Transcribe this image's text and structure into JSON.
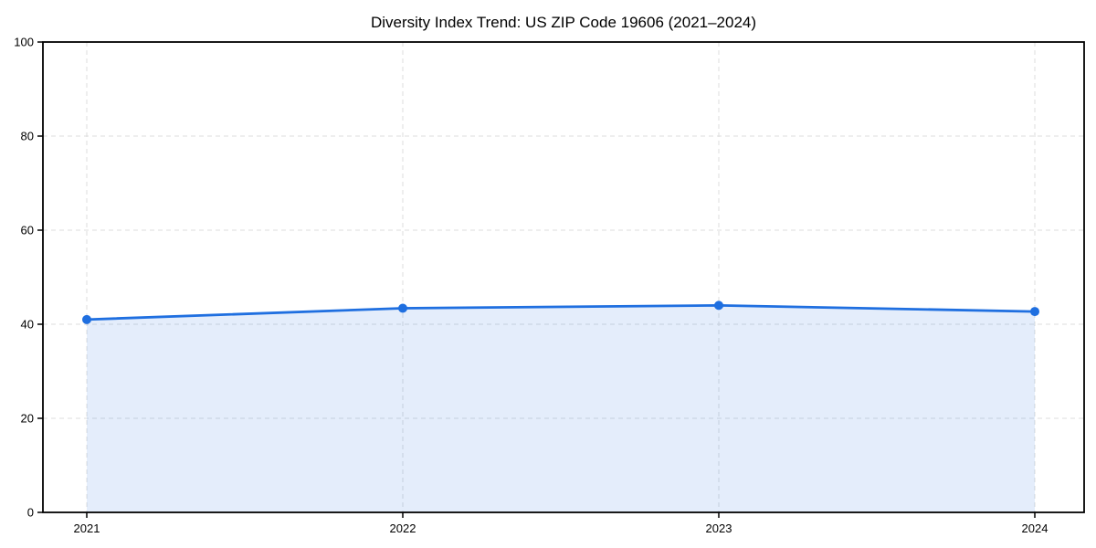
{
  "page": {
    "background": "#ffffff"
  },
  "chart_data": {
    "type": "area",
    "title": "Diversity Index Trend: US ZIP Code 19606 (2021–2024)",
    "series_name": "Diversity Index",
    "categories": [
      "2021",
      "2022",
      "2023",
      "2024"
    ],
    "values": [
      41.0,
      43.4,
      44.0,
      42.7
    ],
    "xlabel": "",
    "ylabel": "",
    "ylim": [
      0,
      100
    ],
    "yticks": [
      0,
      20,
      40,
      60,
      80,
      100
    ],
    "grid": true,
    "grid_style": "dashed",
    "legend_position": "none",
    "colors": {
      "line": "#1f6fe0",
      "marker": "#1f6fe0",
      "fill": "#1f6fe0",
      "fill_opacity": 0.12,
      "grid": "#dcdcdc",
      "spine": "#000000",
      "text": "#000000",
      "background": "#ffffff"
    }
  }
}
